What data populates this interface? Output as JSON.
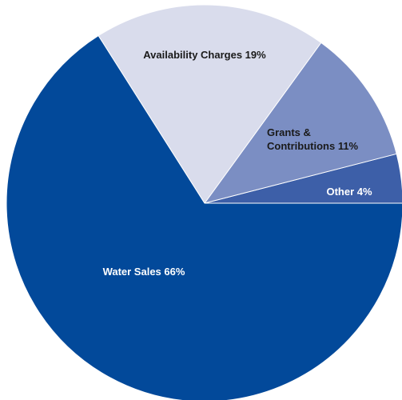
{
  "chart_data": {
    "type": "pie",
    "title": "",
    "slices": [
      {
        "label": "Other 4%",
        "lines": [
          "Other 4%"
        ],
        "value": 4,
        "color": "#3D5FA8",
        "label_color": "#FFFFFF"
      },
      {
        "label": "Grants & Contributions 11%",
        "lines": [
          "Grants &",
          "Contributions 11%"
        ],
        "value": 11,
        "color": "#7B8EC3",
        "label_color": "#1A1A1A"
      },
      {
        "label": "Availability Charges 19%",
        "lines": [
          "Availability Charges 19%"
        ],
        "value": 19,
        "color": "#D9DCEC",
        "label_color": "#1A1A1A"
      },
      {
        "label": "Water Sales 66%",
        "lines": [
          "Water Sales 66%"
        ],
        "value": 66,
        "color": "#02499A",
        "label_color": "#FFFFFF"
      }
    ],
    "start_angle_deg": 0,
    "direction": "counterclockwise",
    "legend": "none"
  }
}
